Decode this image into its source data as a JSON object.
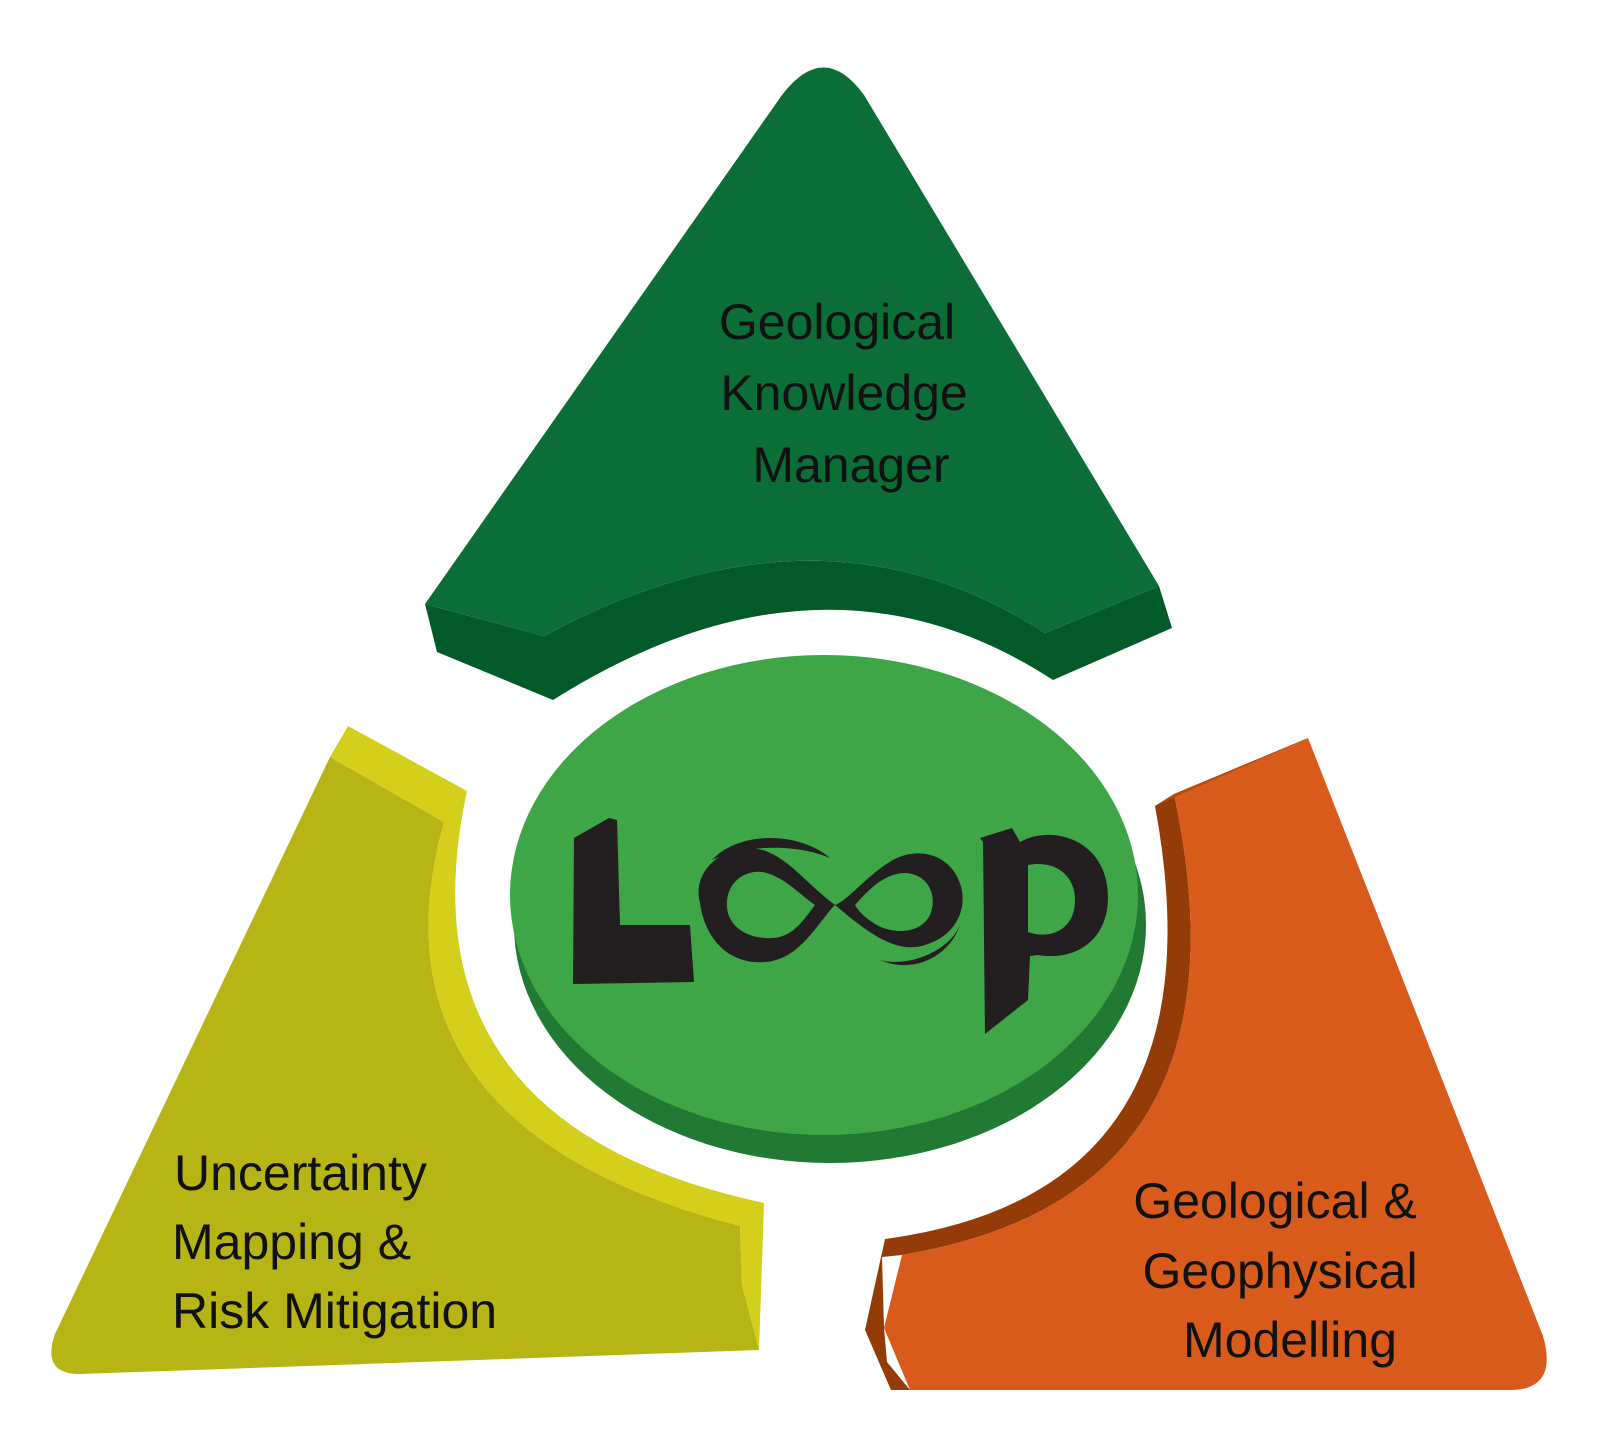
{
  "center": {
    "logo_text": "LOOP",
    "fill_color": "#3ea646",
    "rim_color": "#217a33"
  },
  "segments": [
    {
      "id": "top",
      "lines": [
        "Geological",
        "Knowledge",
        "Manager"
      ],
      "face_color": "#0b6e37",
      "side_color": "#025a28"
    },
    {
      "id": "left",
      "lines": [
        "Uncertainty",
        "Mapping &",
        "Risk Mitigation"
      ],
      "face_color": "#b7b416",
      "side_color": "#d3cf1a"
    },
    {
      "id": "right",
      "lines": [
        "Geological &",
        "Geophysical",
        "Modelling"
      ],
      "face_color": "#d95b1c",
      "side_color": "#943c07"
    }
  ]
}
